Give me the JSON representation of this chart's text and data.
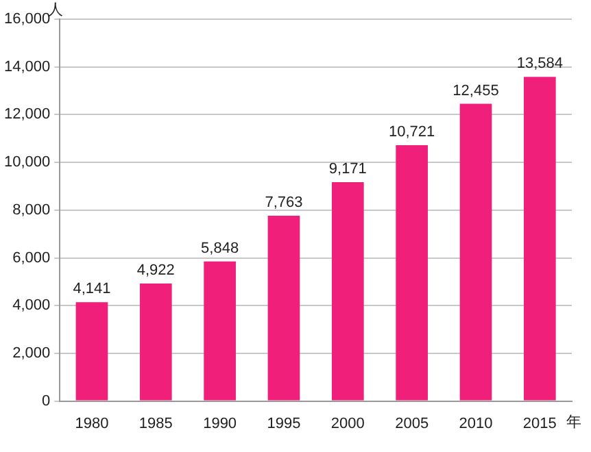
{
  "chart_data": {
    "type": "bar",
    "ylabel": "人",
    "xlabel": "年",
    "categories": [
      "1980",
      "1985",
      "1990",
      "1995",
      "2000",
      "2005",
      "2010",
      "2015"
    ],
    "values": [
      4141,
      4922,
      5848,
      7763,
      9171,
      10721,
      12455,
      13584
    ],
    "value_labels": [
      "4,141",
      "4,922",
      "5,848",
      "7,763",
      "9,171",
      "10,721",
      "12,455",
      "13,584"
    ],
    "color": "#f0207a",
    "ylim": [
      0,
      16000
    ],
    "yticks": [
      0,
      {
        "value": 2000,
        "label": "2,000"
      },
      {
        "value": 4000,
        "label": "4,000"
      },
      {
        "value": 6000,
        "label": "6,000"
      },
      {
        "value": 8000,
        "label": "8,000"
      },
      {
        "value": 10000,
        "label": "10,000"
      },
      {
        "value": 12000,
        "label": "12,000"
      },
      {
        "value": 14000,
        "label": "14,000"
      },
      {
        "value": 16000,
        "label": "16,000"
      }
    ],
    "grid": "y",
    "legend": false
  }
}
